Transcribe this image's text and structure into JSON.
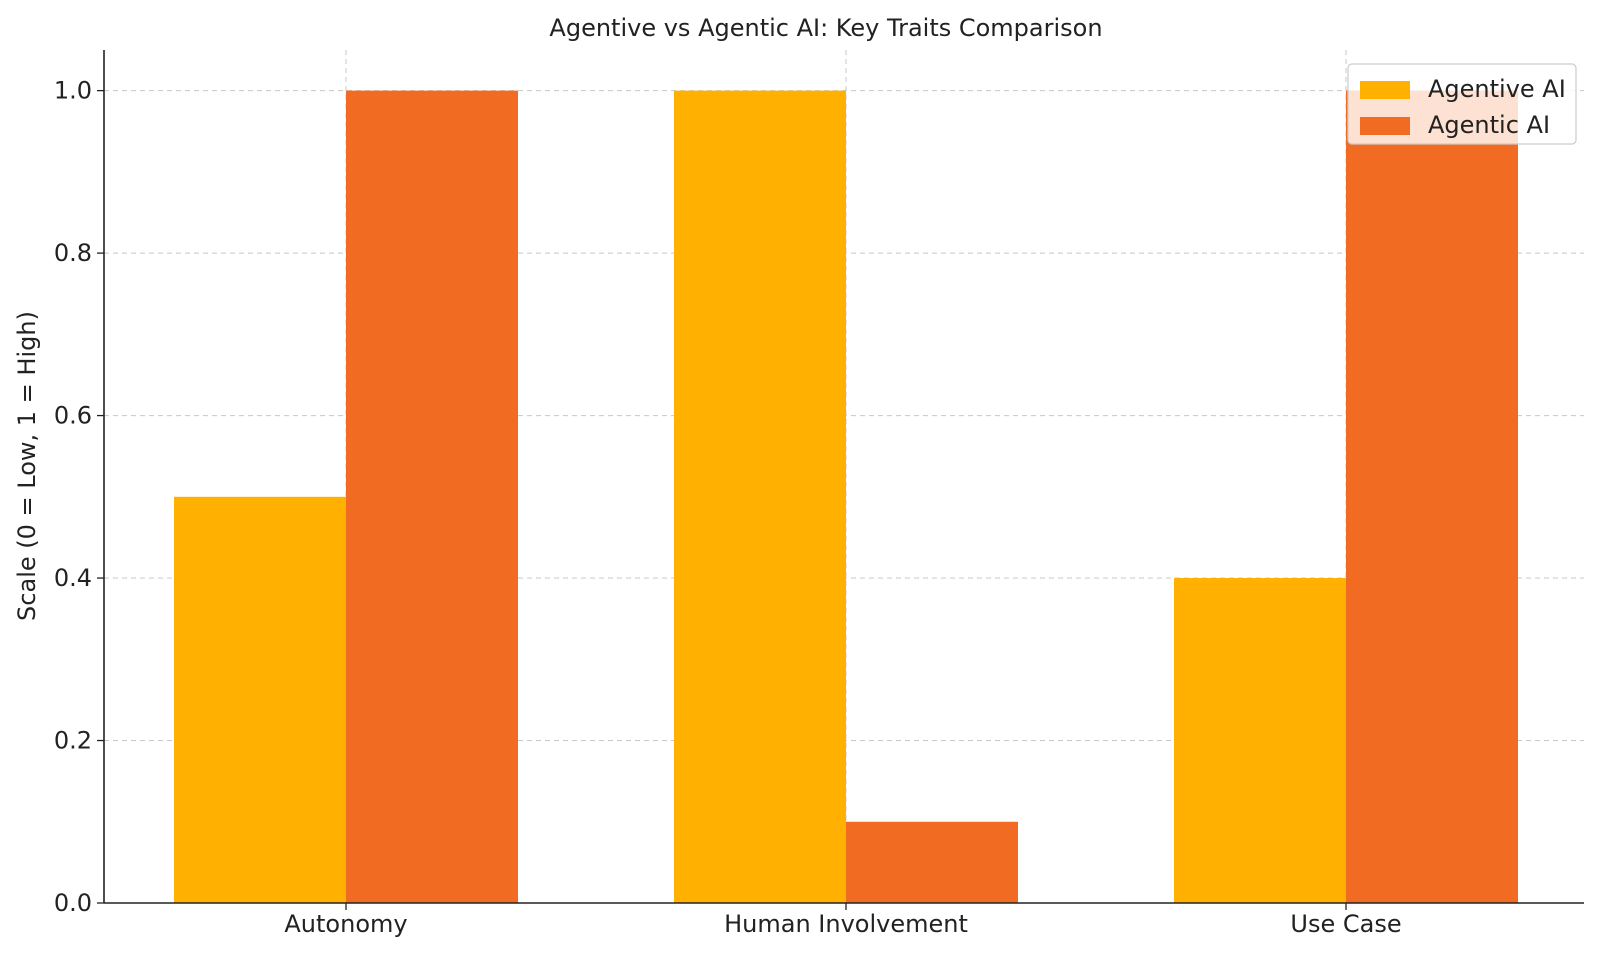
{
  "chart_data": {
    "type": "bar",
    "title": "Agentive vs Agentic AI: Key Traits Comparison",
    "xlabel": "",
    "ylabel": "Scale (0 = Low, 1 = High)",
    "categories": [
      "Autonomy",
      "Human Involvement",
      "Use Case"
    ],
    "series": [
      {
        "name": "Agentive AI",
        "values": [
          0.5,
          1.0,
          0.4
        ],
        "color": "#FFB000"
      },
      {
        "name": "Agentic AI",
        "values": [
          1.0,
          0.1,
          1.0
        ],
        "color": "#F26B22"
      }
    ],
    "ylim": [
      0,
      1.05
    ],
    "yticks": [
      "0.0",
      "0.2",
      "0.4",
      "0.6",
      "0.8",
      "1.0"
    ],
    "grid": true,
    "legend_position": "top-right"
  }
}
